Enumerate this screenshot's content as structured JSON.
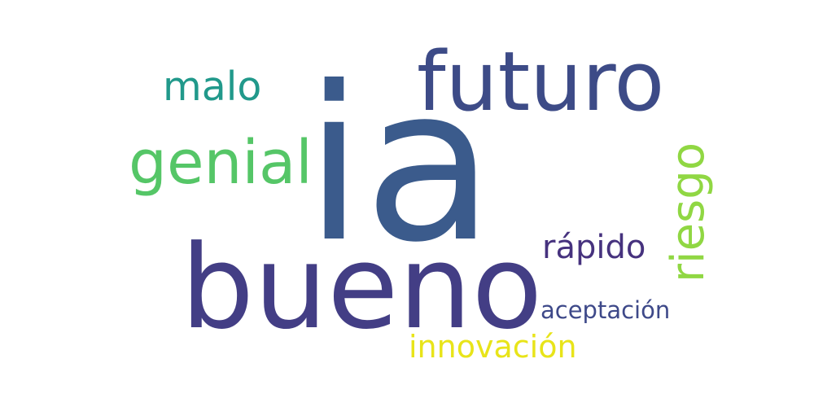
{
  "words": {
    "ia": {
      "text": "ia",
      "color": "#3b5b8c"
    },
    "bueno": {
      "text": "bueno",
      "color": "#433e85"
    },
    "futuro": {
      "text": "futuro",
      "color": "#3d4b87"
    },
    "genial": {
      "text": "genial",
      "color": "#55c667"
    },
    "malo": {
      "text": "malo",
      "color": "#21998b"
    },
    "riesgo": {
      "text": "riesgo",
      "color": "#90d743",
      "orientation": "vertical"
    },
    "rapido": {
      "text": "rápido",
      "color": "#46327e"
    },
    "aceptacion": {
      "text": "aceptación",
      "color": "#3e4989"
    },
    "innovacion": {
      "text": "innovación",
      "color": "#e8e419"
    }
  }
}
